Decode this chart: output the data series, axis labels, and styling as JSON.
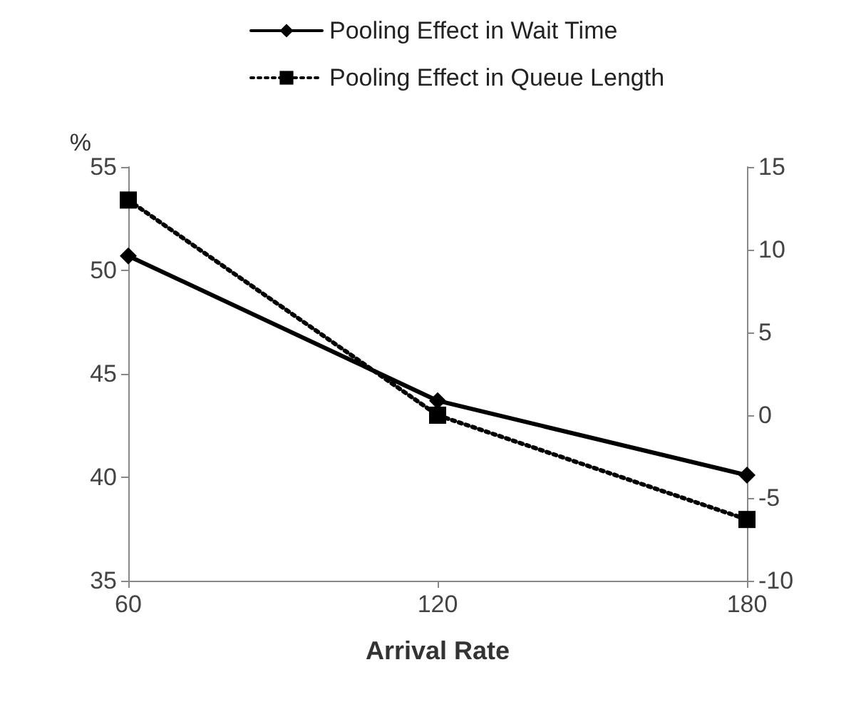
{
  "chart_data": {
    "type": "line",
    "xlabel": "Arrival Rate",
    "ylabel": "%",
    "x": [
      60,
      120,
      180
    ],
    "xlim": [
      60,
      180
    ],
    "xticks": [
      60,
      120,
      180
    ],
    "ylim": [
      35,
      55
    ],
    "yticks": [
      35,
      40,
      45,
      50,
      55
    ],
    "y2lim": [
      -10,
      15
    ],
    "y2ticks": [
      -10,
      -5,
      0,
      5,
      10,
      15
    ],
    "grid": false,
    "legend": "top",
    "series": [
      {
        "name": "Pooling Effect in Wait Time",
        "color": "#000000",
        "values": [
          50.7,
          43.7,
          40.1
        ],
        "marker": "diamond",
        "line_style": "solid"
      },
      {
        "name": "Pooling Effect in Queue Length",
        "color": "#000000",
        "values": [
          13,
          0,
          -6.3
        ],
        "marker": "square",
        "line_style": "dotted",
        "axis": "y2"
      }
    ]
  }
}
